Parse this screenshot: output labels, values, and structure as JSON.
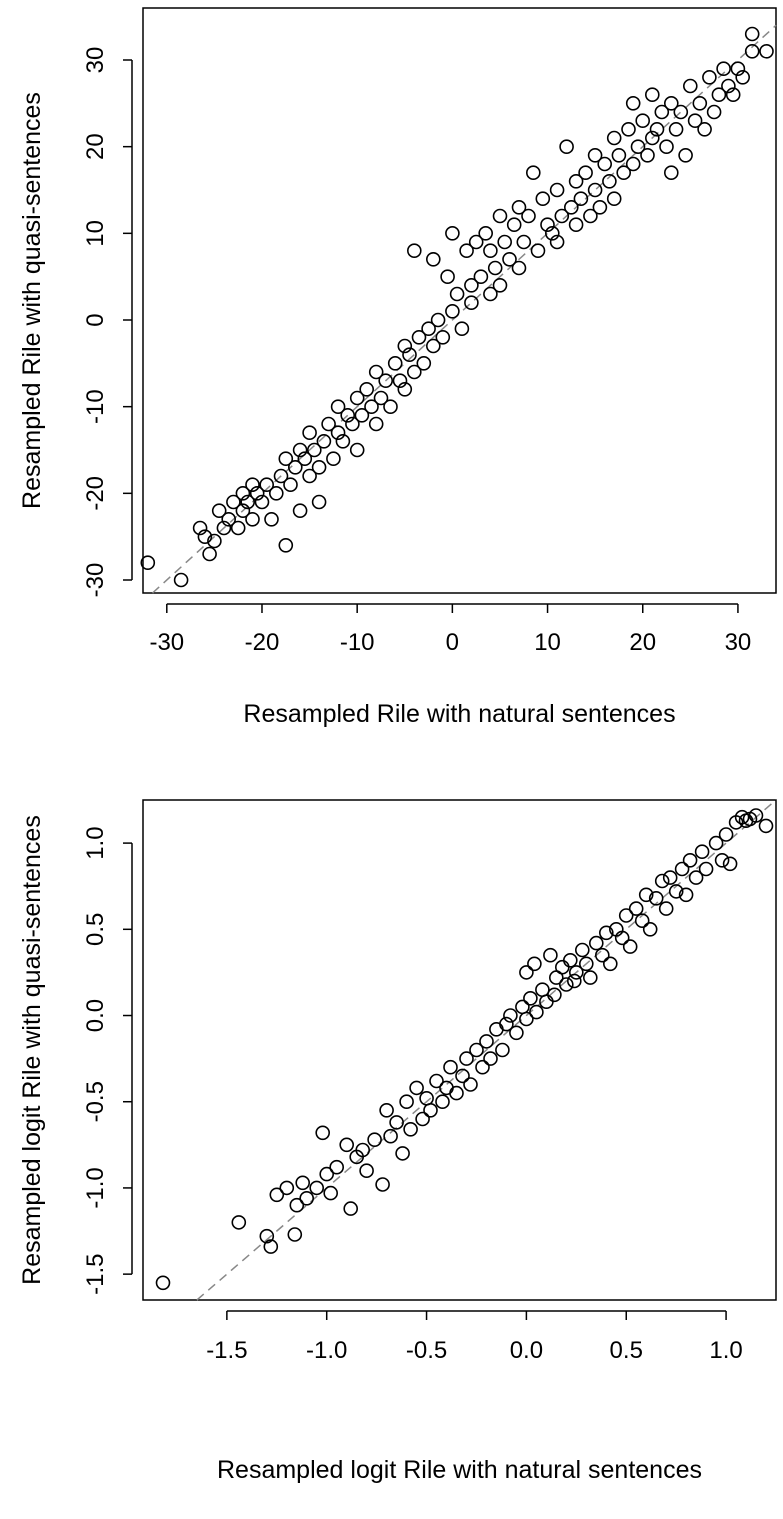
{
  "chart_data": [
    {
      "type": "scatter",
      "title": "",
      "xlabel": "Resampled Rile with natural sentences",
      "ylabel": "Resampled Rile with quasi-sentences",
      "xlim": [
        -32.5,
        34
      ],
      "ylim": [
        -31.5,
        36
      ],
      "xticks": [
        -30,
        -20,
        -10,
        0,
        10,
        20,
        30
      ],
      "xtick_labels": [
        "-30",
        "-20",
        "-10",
        "0",
        "10",
        "20",
        "30"
      ],
      "yticks": [
        -30,
        -20,
        -10,
        0,
        10,
        20,
        30
      ],
      "ytick_labels": [
        "-30",
        "-20",
        "-10",
        "0",
        "10",
        "20",
        "30"
      ],
      "reference_line": "y = x (dashed, gray)",
      "grid": false,
      "legend": "none",
      "marker": "open-circle",
      "points": [
        [
          -32,
          -28
        ],
        [
          -28.5,
          -30
        ],
        [
          -25.5,
          -27
        ],
        [
          -26,
          -25
        ],
        [
          -26.5,
          -24
        ],
        [
          -25,
          -25.5
        ],
        [
          -24.5,
          -22
        ],
        [
          -24,
          -24
        ],
        [
          -23.5,
          -23
        ],
        [
          -23,
          -21
        ],
        [
          -22.5,
          -24
        ],
        [
          -22,
          -20
        ],
        [
          -22,
          -22
        ],
        [
          -21.5,
          -21
        ],
        [
          -21,
          -19
        ],
        [
          -21,
          -23
        ],
        [
          -20.5,
          -20
        ],
        [
          -20,
          -21
        ],
        [
          -19.5,
          -19
        ],
        [
          -19,
          -23
        ],
        [
          -18.5,
          -20
        ],
        [
          -18,
          -18
        ],
        [
          -17.5,
          -26
        ],
        [
          -17.5,
          -16
        ],
        [
          -17,
          -19
        ],
        [
          -16.5,
          -17
        ],
        [
          -16,
          -15
        ],
        [
          -16,
          -22
        ],
        [
          -15.5,
          -16
        ],
        [
          -15,
          -18
        ],
        [
          -15,
          -13
        ],
        [
          -14.5,
          -15
        ],
        [
          -14,
          -17
        ],
        [
          -14,
          -21
        ],
        [
          -13.5,
          -14
        ],
        [
          -13,
          -12
        ],
        [
          -12.5,
          -16
        ],
        [
          -12,
          -13
        ],
        [
          -12,
          -10
        ],
        [
          -11.5,
          -14
        ],
        [
          -11,
          -11
        ],
        [
          -10.5,
          -12
        ],
        [
          -10,
          -9
        ],
        [
          -10,
          -15
        ],
        [
          -9.5,
          -11
        ],
        [
          -9,
          -8
        ],
        [
          -8.5,
          -10
        ],
        [
          -8,
          -12
        ],
        [
          -8,
          -6
        ],
        [
          -7.5,
          -9
        ],
        [
          -7,
          -7
        ],
        [
          -6.5,
          -10
        ],
        [
          -6,
          -5
        ],
        [
          -5.5,
          -7
        ],
        [
          -5,
          -8
        ],
        [
          -5,
          -3
        ],
        [
          -4.5,
          -4
        ],
        [
          -4,
          -6
        ],
        [
          -4,
          8
        ],
        [
          -3.5,
          -2
        ],
        [
          -3,
          -5
        ],
        [
          -2.5,
          -1
        ],
        [
          -2,
          -3
        ],
        [
          -2,
          7
        ],
        [
          -1.5,
          0
        ],
        [
          -1,
          -2
        ],
        [
          -0.5,
          5
        ],
        [
          0,
          1
        ],
        [
          0,
          10
        ],
        [
          0.5,
          3
        ],
        [
          1,
          -1
        ],
        [
          1.5,
          8
        ],
        [
          2,
          4
        ],
        [
          2,
          2
        ],
        [
          2.5,
          9
        ],
        [
          3,
          5
        ],
        [
          3.5,
          10
        ],
        [
          4,
          3
        ],
        [
          4,
          8
        ],
        [
          4.5,
          6
        ],
        [
          5,
          12
        ],
        [
          5,
          4
        ],
        [
          5.5,
          9
        ],
        [
          6,
          7
        ],
        [
          6.5,
          11
        ],
        [
          7,
          6
        ],
        [
          7,
          13
        ],
        [
          7.5,
          9
        ],
        [
          8,
          12
        ],
        [
          8.5,
          17
        ],
        [
          9,
          8
        ],
        [
          9.5,
          14
        ],
        [
          10,
          11
        ],
        [
          10.5,
          10
        ],
        [
          11,
          15
        ],
        [
          11,
          9
        ],
        [
          11.5,
          12
        ],
        [
          12,
          20
        ],
        [
          12.5,
          13
        ],
        [
          13,
          11
        ],
        [
          13,
          16
        ],
        [
          13.5,
          14
        ],
        [
          14,
          17
        ],
        [
          14.5,
          12
        ],
        [
          15,
          15
        ],
        [
          15,
          19
        ],
        [
          15.5,
          13
        ],
        [
          16,
          18
        ],
        [
          16.5,
          16
        ],
        [
          17,
          21
        ],
        [
          17,
          14
        ],
        [
          17.5,
          19
        ],
        [
          18,
          17
        ],
        [
          18.5,
          22
        ],
        [
          19,
          18
        ],
        [
          19,
          25
        ],
        [
          19.5,
          20
        ],
        [
          20,
          23
        ],
        [
          20.5,
          19
        ],
        [
          21,
          21
        ],
        [
          21,
          26
        ],
        [
          21.5,
          22
        ],
        [
          22,
          24
        ],
        [
          22.5,
          20
        ],
        [
          23,
          17
        ],
        [
          23,
          25
        ],
        [
          23.5,
          22
        ],
        [
          24,
          24
        ],
        [
          24.5,
          19
        ],
        [
          25,
          27
        ],
        [
          25.5,
          23
        ],
        [
          26,
          25
        ],
        [
          26.5,
          22
        ],
        [
          27,
          28
        ],
        [
          27.5,
          24
        ],
        [
          28,
          26
        ],
        [
          28.5,
          29
        ],
        [
          29,
          27
        ],
        [
          29.5,
          26
        ],
        [
          30,
          29
        ],
        [
          30.5,
          28
        ],
        [
          31.5,
          33
        ],
        [
          31.5,
          31
        ],
        [
          33,
          31
        ]
      ]
    },
    {
      "type": "scatter",
      "title": "",
      "xlabel": "Resampled logit Rile with natural sentences",
      "ylabel": "Resampled logit Rile with quasi-sentences",
      "xlim": [
        -1.92,
        1.25
      ],
      "ylim": [
        -1.65,
        1.25
      ],
      "xticks": [
        -1.5,
        -1.0,
        -0.5,
        0.0,
        0.5,
        1.0
      ],
      "xtick_labels": [
        "-1.5",
        "-1.0",
        "-0.5",
        "0.0",
        "0.5",
        "1.0"
      ],
      "yticks": [
        -1.5,
        -1.0,
        -0.5,
        0.0,
        0.5,
        1.0
      ],
      "ytick_labels": [
        "-1.5",
        "-1.0",
        "-0.5",
        "0.0",
        "0.5",
        "1.0"
      ],
      "reference_line": "y = x (dashed, gray)",
      "grid": false,
      "legend": "none",
      "marker": "open-circle",
      "points": [
        [
          -1.82,
          -1.55
        ],
        [
          -1.44,
          -1.2
        ],
        [
          -1.3,
          -1.28
        ],
        [
          -1.28,
          -1.34
        ],
        [
          -1.25,
          -1.04
        ],
        [
          -1.2,
          -1.0
        ],
        [
          -1.16,
          -1.27
        ],
        [
          -1.15,
          -1.1
        ],
        [
          -1.12,
          -0.97
        ],
        [
          -1.1,
          -1.06
        ],
        [
          -1.05,
          -1.0
        ],
        [
          -1.02,
          -0.68
        ],
        [
          -1.0,
          -0.92
        ],
        [
          -0.98,
          -1.03
        ],
        [
          -0.95,
          -0.88
        ],
        [
          -0.9,
          -0.75
        ],
        [
          -0.88,
          -1.12
        ],
        [
          -0.85,
          -0.82
        ],
        [
          -0.82,
          -0.78
        ],
        [
          -0.8,
          -0.9
        ],
        [
          -0.76,
          -0.72
        ],
        [
          -0.72,
          -0.98
        ],
        [
          -0.7,
          -0.55
        ],
        [
          -0.68,
          -0.7
        ],
        [
          -0.65,
          -0.62
        ],
        [
          -0.62,
          -0.8
        ],
        [
          -0.6,
          -0.5
        ],
        [
          -0.58,
          -0.66
        ],
        [
          -0.55,
          -0.42
        ],
        [
          -0.52,
          -0.6
        ],
        [
          -0.5,
          -0.48
        ],
        [
          -0.48,
          -0.55
        ],
        [
          -0.45,
          -0.38
        ],
        [
          -0.42,
          -0.5
        ],
        [
          -0.4,
          -0.42
        ],
        [
          -0.38,
          -0.3
        ],
        [
          -0.35,
          -0.45
        ],
        [
          -0.32,
          -0.35
        ],
        [
          -0.3,
          -0.25
        ],
        [
          -0.28,
          -0.4
        ],
        [
          -0.25,
          -0.2
        ],
        [
          -0.22,
          -0.3
        ],
        [
          -0.2,
          -0.15
        ],
        [
          -0.18,
          -0.25
        ],
        [
          -0.15,
          -0.08
        ],
        [
          -0.12,
          -0.2
        ],
        [
          -0.1,
          -0.05
        ],
        [
          -0.08,
          0.0
        ],
        [
          -0.05,
          -0.1
        ],
        [
          -0.02,
          0.05
        ],
        [
          0.0,
          0.25
        ],
        [
          0.0,
          -0.02
        ],
        [
          0.02,
          0.1
        ],
        [
          0.04,
          0.3
        ],
        [
          0.05,
          0.02
        ],
        [
          0.08,
          0.15
        ],
        [
          0.1,
          0.08
        ],
        [
          0.12,
          0.35
        ],
        [
          0.14,
          0.12
        ],
        [
          0.15,
          0.22
        ],
        [
          0.18,
          0.28
        ],
        [
          0.2,
          0.18
        ],
        [
          0.22,
          0.32
        ],
        [
          0.24,
          0.2
        ],
        [
          0.25,
          0.25
        ],
        [
          0.28,
          0.38
        ],
        [
          0.3,
          0.3
        ],
        [
          0.32,
          0.22
        ],
        [
          0.35,
          0.42
        ],
        [
          0.38,
          0.35
        ],
        [
          0.4,
          0.48
        ],
        [
          0.42,
          0.3
        ],
        [
          0.45,
          0.5
        ],
        [
          0.48,
          0.45
        ],
        [
          0.5,
          0.58
        ],
        [
          0.52,
          0.4
        ],
        [
          0.55,
          0.62
        ],
        [
          0.58,
          0.55
        ],
        [
          0.6,
          0.7
        ],
        [
          0.62,
          0.5
        ],
        [
          0.65,
          0.68
        ],
        [
          0.68,
          0.78
        ],
        [
          0.7,
          0.62
        ],
        [
          0.72,
          0.8
        ],
        [
          0.75,
          0.72
        ],
        [
          0.78,
          0.85
        ],
        [
          0.8,
          0.7
        ],
        [
          0.82,
          0.9
        ],
        [
          0.85,
          0.8
        ],
        [
          0.88,
          0.95
        ],
        [
          0.9,
          0.85
        ],
        [
          0.95,
          1.0
        ],
        [
          0.98,
          0.9
        ],
        [
          1.0,
          1.05
        ],
        [
          1.02,
          0.88
        ],
        [
          1.05,
          1.12
        ],
        [
          1.08,
          1.15
        ],
        [
          1.1,
          1.13
        ],
        [
          1.12,
          1.14
        ],
        [
          1.15,
          1.16
        ],
        [
          1.2,
          1.1
        ]
      ]
    }
  ]
}
